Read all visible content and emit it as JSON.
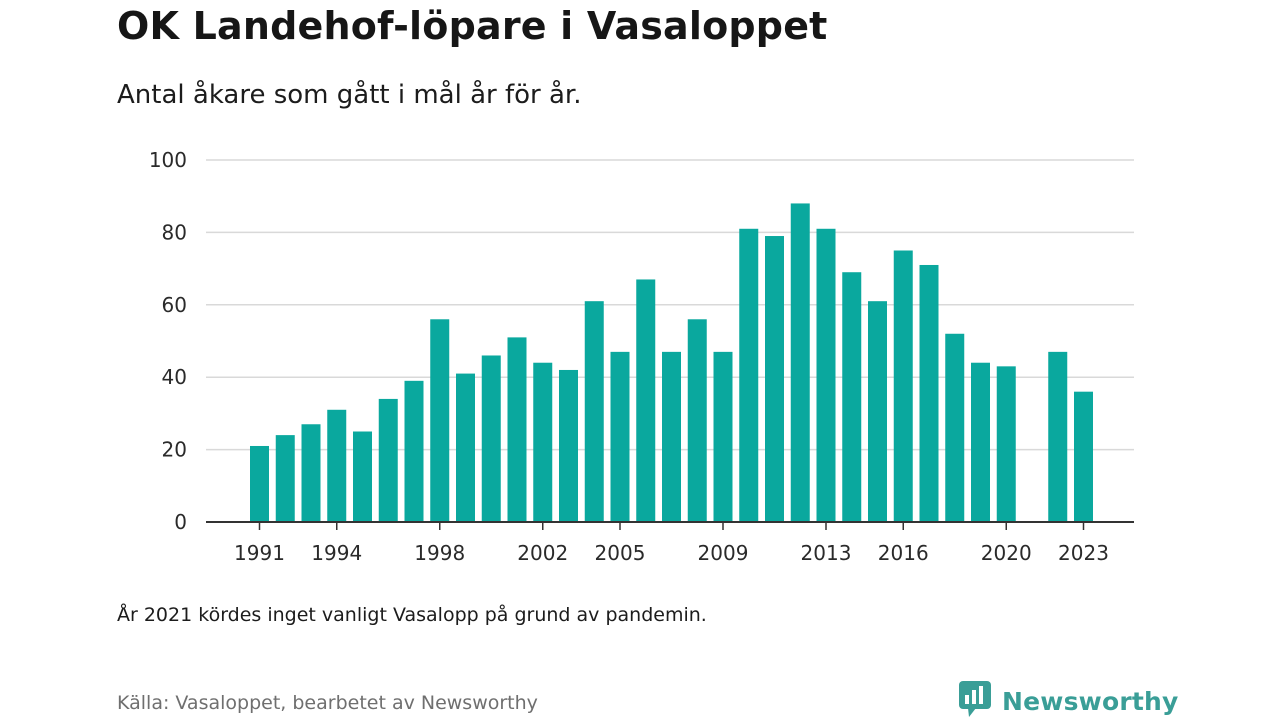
{
  "header": {
    "title": "OK Landehof-löpare i Vasaloppet",
    "subtitle": "Antal åkare som gått i mål år för år."
  },
  "footer": {
    "note": "År 2021 kördes inget vanligt Vasalopp på grund av pandemin.",
    "source": "Källa: Vasaloppet, bearbetet av Newsworthy",
    "brand": "Newsworthy",
    "brand_icon": "newsworthy-logo-icon"
  },
  "colors": {
    "bar": "#0aa89e",
    "grid": "#d9d9d9",
    "axis": "#333333",
    "brand": "#3a9e97"
  },
  "chart_data": {
    "type": "bar",
    "title": "OK Landehof-löpare i Vasaloppet",
    "subtitle": "Antal åkare som gått i mål år för år.",
    "xlabel": "",
    "ylabel": "",
    "ylim": [
      0,
      100
    ],
    "yticks": [
      0,
      20,
      40,
      60,
      80,
      100
    ],
    "xticks": [
      1991,
      1994,
      1998,
      2002,
      2005,
      2009,
      2013,
      2016,
      2020,
      2023
    ],
    "grid": true,
    "legend": "none",
    "categories": [
      1991,
      1992,
      1993,
      1994,
      1995,
      1996,
      1997,
      1998,
      1999,
      2000,
      2001,
      2002,
      2003,
      2004,
      2005,
      2006,
      2007,
      2008,
      2009,
      2010,
      2011,
      2012,
      2013,
      2014,
      2015,
      2016,
      2017,
      2018,
      2019,
      2020,
      2021,
      2022,
      2023
    ],
    "values": [
      21,
      24,
      27,
      31,
      25,
      34,
      39,
      56,
      41,
      46,
      51,
      44,
      42,
      61,
      47,
      67,
      47,
      56,
      47,
      81,
      79,
      88,
      81,
      69,
      61,
      75,
      71,
      52,
      44,
      43,
      null,
      47,
      36
    ]
  }
}
